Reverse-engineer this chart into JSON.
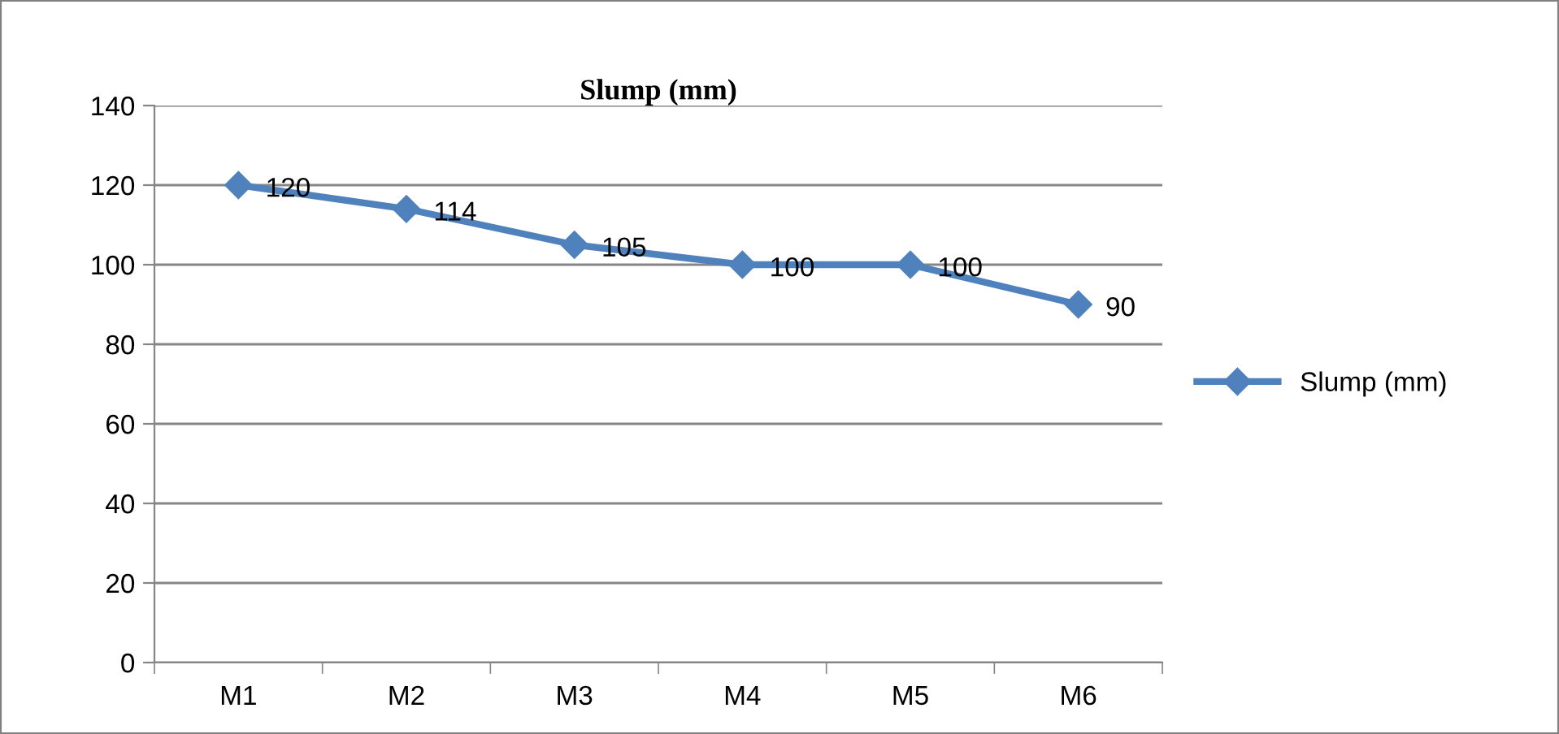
{
  "chart_data": {
    "type": "line",
    "title": "Slump (mm)",
    "categories": [
      "M1",
      "M2",
      "M3",
      "M4",
      "M5",
      "M6"
    ],
    "series": [
      {
        "name": "Slump (mm)",
        "color": "#4f81bd",
        "values": [
          120,
          114,
          105,
          100,
          100,
          90
        ]
      }
    ],
    "ylim": [
      0,
      140
    ],
    "yticks": [
      0,
      20,
      40,
      60,
      80,
      100,
      120,
      140
    ],
    "grid": "y",
    "legend": "right",
    "marker": "diamond",
    "line_style": "solid",
    "data_labels": true
  }
}
